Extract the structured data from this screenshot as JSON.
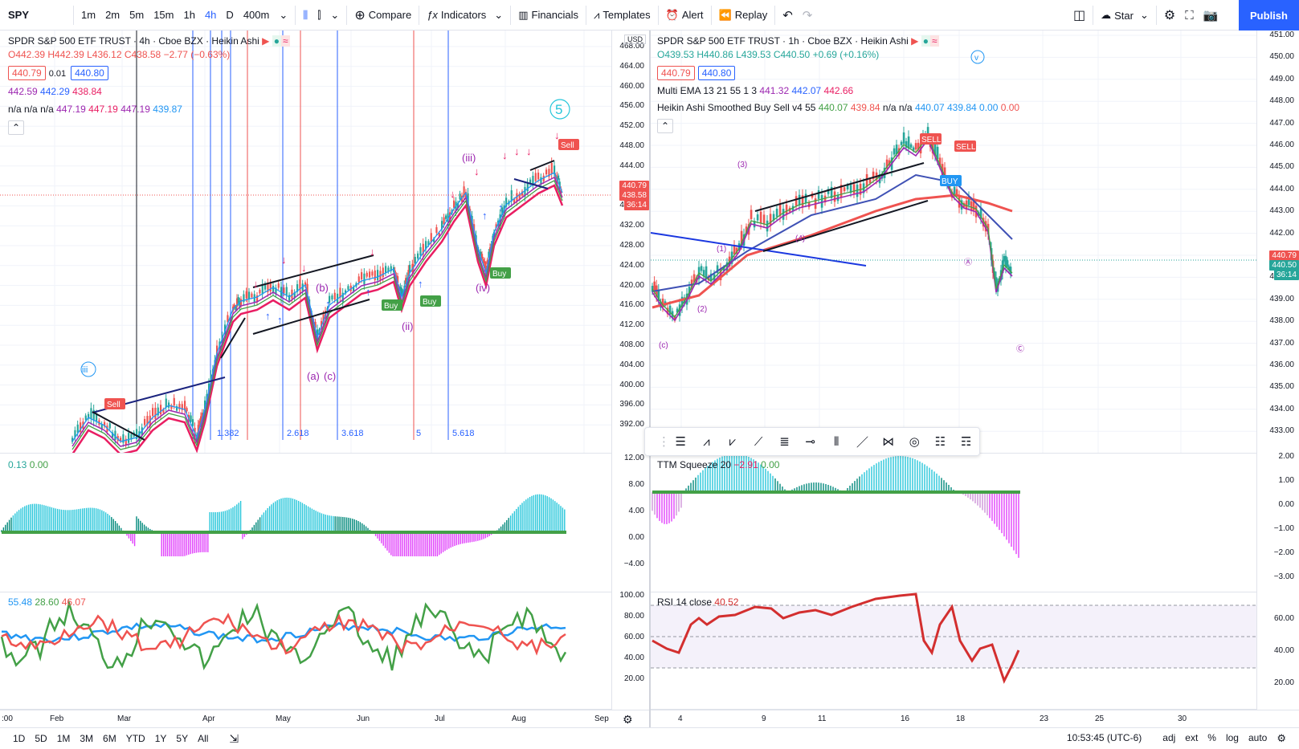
{
  "toolbar": {
    "symbol": "SPY",
    "intervals": [
      "1m",
      "2m",
      "5m",
      "15m",
      "1h",
      "4h",
      "D",
      "400m"
    ],
    "active_interval": "4h",
    "compare": "Compare",
    "indicators": "Indicators",
    "financials": "Financials",
    "templates": "Templates",
    "alert": "Alert",
    "replay": "Replay",
    "star": "Star",
    "publish": "Publish"
  },
  "left": {
    "title": "SPDR S&P 500 ETF TRUST · 4h · Cboe BZX · Heikin Ashi",
    "ohlc": {
      "o": "O442.39",
      "h": "H442.39",
      "l": "L436.12",
      "c": "C438.58",
      "chg": "−2.77 (−0.63%)"
    },
    "bid": "440.79",
    "spread": "0.01",
    "ask": "440.80",
    "ind1": [
      "442.59",
      "442.29",
      "438.84"
    ],
    "ind2": [
      "n/a",
      "n/a",
      "n/a",
      "447.19",
      "447.19",
      "447.19",
      "439.87"
    ],
    "currency": "USD",
    "price_ticks": [
      "468.00",
      "464.00",
      "460.00",
      "456.00",
      "452.00",
      "448.00",
      "444.00",
      "440.00",
      "436.00",
      "432.00",
      "428.00",
      "424.00",
      "420.00",
      "416.00",
      "412.00",
      "408.00",
      "404.00",
      "400.00",
      "396.00",
      "392.00"
    ],
    "price_tags": {
      "last": "440.79",
      "close": "438.58",
      "countdown": "36:14"
    },
    "fib_labels": [
      "1.382",
      "2.618",
      "3.618",
      "5",
      "5.618"
    ],
    "squeeze_legend": [
      "0.13",
      "0.00"
    ],
    "squeeze_ticks": [
      "12.00",
      "8.00",
      "4.00",
      "0.00",
      "−4.00"
    ],
    "rsi_legend": [
      "55.48",
      "28.60",
      "46.07"
    ],
    "rsi_ticks": [
      "100.00",
      "80.00",
      "60.00",
      "40.00",
      "20.00"
    ],
    "x_ticks": [
      ":00",
      "Feb",
      "Mar",
      "Apr",
      "May",
      "Jun",
      "Jul",
      "Aug",
      "Sep"
    ],
    "wave_labels": [
      "(iii)",
      "(iv)",
      "(ii)",
      "(a)",
      "(c)",
      "(b)",
      "5",
      "iii"
    ],
    "signal_labels": [
      "Sell",
      "Buy",
      "Buy",
      "Buy",
      "Sell"
    ]
  },
  "right": {
    "title": "SPDR S&P 500 ETF TRUST · 1h · Cboe BZX · Heikin Ashi",
    "ohlc": {
      "o": "O439.53",
      "h": "H440.86",
      "l": "L439.53",
      "c": "C440.50",
      "chg": "+0.69 (+0.16%)"
    },
    "bid": "440.79",
    "ask": "440.80",
    "ema_legend": {
      "label": "Multi EMA 13 21 55 1 3",
      "vals": [
        "441.32",
        "442.07",
        "442.66"
      ]
    },
    "ha_legend": {
      "label": "Heikin Ashi Smoothed Buy Sell v4 55",
      "vals": [
        "440.07",
        "439.84",
        "n/a",
        "n/a",
        "440.07",
        "439.84",
        "0.00",
        "0.00"
      ]
    },
    "price_ticks": [
      "451.00",
      "450.00",
      "449.00",
      "448.00",
      "447.00",
      "446.00",
      "445.00",
      "444.00",
      "443.00",
      "442.00",
      "441.00",
      "440.00",
      "439.00",
      "438.00",
      "437.00",
      "436.00",
      "435.00",
      "434.00",
      "433.00"
    ],
    "price_tags": {
      "last": "440.79",
      "close": "440.50",
      "countdown": "36:14"
    },
    "squeeze_legend": {
      "label": "TTM Squeeze 20",
      "vals": [
        "−2.91",
        "0.00"
      ]
    },
    "squeeze_ticks": [
      "2.00",
      "1.00",
      "0.00",
      "−1.00",
      "−2.00",
      "−3.00"
    ],
    "rsi_legend": {
      "label": "RSI 14 close",
      "val": "40.52"
    },
    "rsi_ticks": [
      "60.00",
      "40.00",
      "20.00"
    ],
    "x_ticks": [
      "4",
      "9",
      "11",
      "16",
      "18",
      "23",
      "25",
      "30"
    ],
    "signal_labels": [
      "SELL",
      "SELL",
      "BUY"
    ]
  },
  "bottom": {
    "ranges": [
      "1D",
      "5D",
      "1M",
      "3M",
      "6M",
      "YTD",
      "1Y",
      "5Y",
      "All"
    ],
    "time": "10:53:45 (UTC-6)",
    "opts": [
      "adj",
      "ext",
      "%",
      "log",
      "auto"
    ]
  },
  "colors": {
    "accent": "#2962ff",
    "up": "#26a69a",
    "down": "#ef5350",
    "green": "#43a047",
    "magenta": "#e91e63",
    "cyan": "#26c6da"
  }
}
